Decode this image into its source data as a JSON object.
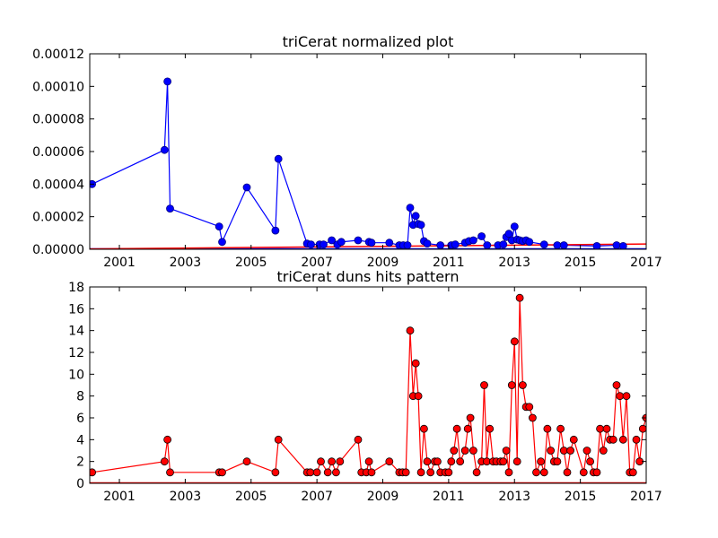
{
  "chart_data": [
    {
      "type": "line",
      "title": "triCerat normalized plot",
      "xlabel": "",
      "ylabel": "",
      "xlim": [
        2000.1,
        2017.0
      ],
      "ylim": [
        0,
        0.00012
      ],
      "xticks": [
        2001,
        2003,
        2005,
        2007,
        2009,
        2011,
        2013,
        2015,
        2017
      ],
      "yticks": [
        0,
        2e-05,
        4e-05,
        6e-05,
        8e-05,
        0.0001,
        0.00012
      ],
      "xtick_labels": [
        "2001",
        "2003",
        "2005",
        "2007",
        "2009",
        "2011",
        "2013",
        "2015",
        "2017"
      ],
      "ytick_labels": [
        "0.00000",
        "0.00002",
        "0.00004",
        "0.00006",
        "0.00008",
        "0.00010",
        "0.00012"
      ],
      "grid": false,
      "colors": {
        "series": "#0000ff",
        "overlay": "#ff0000"
      },
      "overlay_line": {
        "x": [
          2000.1,
          2017.0
        ],
        "y": [
          2e-07,
          3.2e-06
        ]
      },
      "series": [
        {
          "x": [
            2000.17,
            2002.37,
            2002.46,
            2002.54,
            2004.03,
            2004.12,
            2004.87,
            2005.74,
            2005.83,
            2006.7,
            2006.82,
            2007.08,
            2007.2,
            2007.45,
            2007.62,
            2007.74,
            2008.25,
            2008.58,
            2008.66,
            2009.2,
            2009.5,
            2009.62,
            2009.75,
            2009.83,
            2009.92,
            2010.0,
            2010.08,
            2010.16,
            2010.25,
            2010.35,
            2010.75,
            2011.08,
            2011.2,
            2011.5,
            2011.62,
            2011.75,
            2012.0,
            2012.17,
            2012.5,
            2012.66,
            2012.75,
            2012.83,
            2012.92,
            2013.0,
            2013.08,
            2013.16,
            2013.25,
            2013.35,
            2013.45,
            2013.9,
            2014.3,
            2014.5,
            2015.5,
            2016.1,
            2016.3
          ],
          "y": [
            4e-05,
            6.1e-05,
            0.000103,
            2.5e-05,
            1.4e-05,
            4.5e-06,
            3.8e-05,
            1.15e-05,
            5.55e-05,
            3.5e-06,
            3e-06,
            3e-06,
            3e-06,
            5.5e-06,
            3e-06,
            4.5e-06,
            5.5e-06,
            4.5e-06,
            4e-06,
            4e-06,
            2.5e-06,
            2.5e-06,
            2.5e-06,
            2.55e-05,
            1.5e-05,
            2.05e-05,
            1.55e-05,
            1.5e-05,
            5e-06,
            3.5e-06,
            2.5e-06,
            2.5e-06,
            3e-06,
            4e-06,
            5e-06,
            5.5e-06,
            8e-06,
            2.5e-06,
            2.5e-06,
            3e-06,
            7.5e-06,
            9.5e-06,
            5.5e-06,
            1.4e-05,
            6e-06,
            5.5e-06,
            5e-06,
            5.5e-06,
            4.5e-06,
            3e-06,
            2.5e-06,
            2.5e-06,
            2e-06,
            2.5e-06,
            2e-06
          ]
        }
      ]
    },
    {
      "type": "line",
      "title": "triCerat duns hits pattern",
      "xlabel": "",
      "ylabel": "",
      "xlim": [
        2000.1,
        2017.0
      ],
      "ylim": [
        0,
        18
      ],
      "xticks": [
        2001,
        2003,
        2005,
        2007,
        2009,
        2011,
        2013,
        2015,
        2017
      ],
      "yticks": [
        0,
        2,
        4,
        6,
        8,
        10,
        12,
        14,
        16,
        18
      ],
      "xtick_labels": [
        "2001",
        "2003",
        "2005",
        "2007",
        "2009",
        "2011",
        "2013",
        "2015",
        "2017"
      ],
      "ytick_labels": [
        "0",
        "2",
        "4",
        "6",
        "8",
        "10",
        "12",
        "14",
        "16",
        "18"
      ],
      "grid": false,
      "colors": {
        "series": "#ff0000"
      },
      "series": [
        {
          "x": [
            2000.17,
            2002.37,
            2002.46,
            2002.54,
            2004.03,
            2004.12,
            2004.87,
            2005.74,
            2005.83,
            2006.7,
            2006.8,
            2007.0,
            2007.12,
            2007.33,
            2007.45,
            2007.58,
            2007.7,
            2008.25,
            2008.35,
            2008.5,
            2008.58,
            2008.66,
            2009.2,
            2009.5,
            2009.6,
            2009.7,
            2009.83,
            2009.92,
            2010.0,
            2010.08,
            2010.16,
            2010.25,
            2010.35,
            2010.45,
            2010.58,
            2010.66,
            2010.75,
            2010.9,
            2011.0,
            2011.08,
            2011.16,
            2011.25,
            2011.35,
            2011.5,
            2011.58,
            2011.66,
            2011.75,
            2011.85,
            2012.0,
            2012.08,
            2012.16,
            2012.25,
            2012.35,
            2012.45,
            2012.58,
            2012.66,
            2012.75,
            2012.83,
            2012.92,
            2013.0,
            2013.08,
            2013.16,
            2013.25,
            2013.35,
            2013.45,
            2013.55,
            2013.66,
            2013.8,
            2013.9,
            2014.0,
            2014.1,
            2014.2,
            2014.3,
            2014.4,
            2014.5,
            2014.6,
            2014.7,
            2014.8,
            2015.1,
            2015.2,
            2015.3,
            2015.4,
            2015.5,
            2015.6,
            2015.7,
            2015.8,
            2015.9,
            2016.0,
            2016.1,
            2016.2,
            2016.3,
            2016.4,
            2016.5,
            2016.6,
            2016.7,
            2016.8,
            2016.9,
            2017.0
          ],
          "y": [
            1,
            2,
            4,
            1,
            1,
            1,
            2,
            1,
            4,
            1,
            1,
            1,
            2,
            1,
            2,
            1,
            2,
            4,
            1,
            1,
            2,
            1,
            2,
            1,
            1,
            1,
            14,
            8,
            11,
            8,
            1,
            5,
            2,
            1,
            2,
            2,
            1,
            1,
            1,
            2,
            3,
            5,
            2,
            3,
            5,
            6,
            3,
            1,
            2,
            9,
            2,
            5,
            2,
            2,
            2,
            2,
            3,
            1,
            9,
            13,
            2,
            17,
            9,
            7,
            7,
            6,
            1,
            2,
            1,
            5,
            3,
            2,
            2,
            5,
            3,
            1,
            3,
            4,
            1,
            3,
            2,
            1,
            1,
            5,
            3,
            5,
            4,
            4,
            9,
            8,
            4,
            8,
            1,
            1,
            4,
            2,
            5,
            6
          ]
        }
      ]
    }
  ]
}
